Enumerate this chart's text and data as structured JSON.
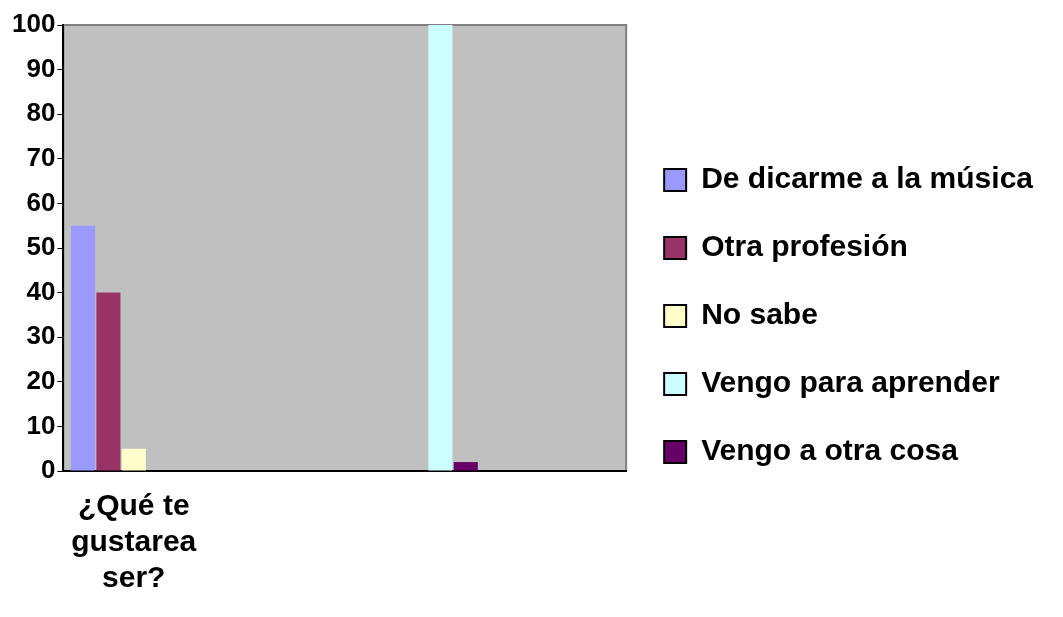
{
  "chart_data": {
    "type": "bar",
    "categories": [
      "¿Qué te gustarea ser?",
      null,
      null,
      null
    ],
    "series": [
      {
        "name": "De dicarme a la música",
        "color": "#9999ff",
        "values": [
          55,
          null,
          null,
          null
        ]
      },
      {
        "name": "Otra profesión",
        "color": "#993366",
        "values": [
          40,
          null,
          null,
          null
        ]
      },
      {
        "name": "No sabe",
        "color": "#ffffcc",
        "values": [
          5,
          null,
          null,
          null
        ]
      },
      {
        "name": "Vengo para aprender",
        "color": "#ccffff",
        "values": [
          null,
          null,
          100,
          null
        ]
      },
      {
        "name": "Vengo a otra cosa",
        "color": "#660066",
        "values": [
          null,
          null,
          2,
          null
        ]
      }
    ],
    "ylim": [
      0,
      100
    ],
    "yticks": [
      0,
      10,
      20,
      30,
      40,
      50,
      60,
      70,
      80,
      90,
      100
    ],
    "grid": false,
    "legend": "right"
  }
}
